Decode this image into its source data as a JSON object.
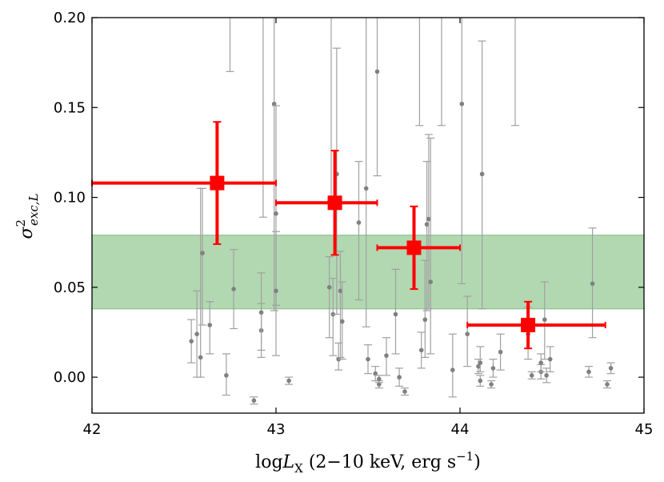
{
  "chart_data": {
    "type": "scatter",
    "xlabel": "log L_X (2–10 keV, erg s^-1)",
    "ylabel": "σ²_exc,L",
    "xlim": [
      42,
      45
    ],
    "ylim": [
      -0.02,
      0.2
    ],
    "x_ticks": [
      "42",
      "43",
      "44",
      "45"
    ],
    "y_ticks": [
      "0.00",
      "0.05",
      "0.10",
      "0.15",
      "0.20"
    ],
    "band": {
      "y_low": 0.038,
      "y_high": 0.079,
      "color": "#b2d8b2",
      "edge_color": "#7fbf7f"
    },
    "grey_points": [
      {
        "x": 42.54,
        "y": 0.02,
        "yerr_low": 0.012,
        "yerr_high": 0.012
      },
      {
        "x": 42.57,
        "y": 0.024,
        "yerr_low": 0.024,
        "yerr_high": 0.024
      },
      {
        "x": 42.59,
        "y": 0.011,
        "yerr_low": 0.011,
        "yerr_high": 0.094
      },
      {
        "x": 42.6,
        "y": 0.069,
        "yerr_low": 0.04,
        "yerr_high": 0.036
      },
      {
        "x": 42.64,
        "y": 0.029,
        "yerr_low": 0.016,
        "yerr_high": 0.013
      },
      {
        "x": 42.73,
        "y": 0.001,
        "yerr_low": 0.011,
        "yerr_high": 0.012
      },
      {
        "x": 42.75,
        "y": 0.21,
        "yerr_low": 0.04,
        "yerr_high": 0.02
      },
      {
        "x": 42.77,
        "y": 0.049,
        "yerr_low": 0.022,
        "yerr_high": 0.022
      },
      {
        "x": 42.88,
        "y": -0.013,
        "yerr_low": 0.002,
        "yerr_high": 0.002
      },
      {
        "x": 42.92,
        "y": 0.026,
        "yerr_low": 0.015,
        "yerr_high": 0.015
      },
      {
        "x": 42.92,
        "y": 0.036,
        "yerr_low": 0.021,
        "yerr_high": 0.022
      },
      {
        "x": 42.93,
        "y": 0.21,
        "yerr_low": 0.121,
        "yerr_high": 0.02
      },
      {
        "x": 42.99,
        "y": 0.152,
        "yerr_low": 0.115,
        "yerr_high": 0.05
      },
      {
        "x": 43.0,
        "y": 0.091,
        "yerr_low": 0.051,
        "yerr_high": 0.06
      },
      {
        "x": 43.0,
        "y": 0.048,
        "yerr_low": 0.036,
        "yerr_high": 0.033
      },
      {
        "x": 43.07,
        "y": -0.002,
        "yerr_low": 0.002,
        "yerr_high": 0.002
      },
      {
        "x": 43.29,
        "y": 0.05,
        "yerr_low": 0.028,
        "yerr_high": 0.017
      },
      {
        "x": 43.3,
        "y": 0.21,
        "yerr_low": 0.112,
        "yerr_high": 0.02
      },
      {
        "x": 43.31,
        "y": 0.035,
        "yerr_low": 0.023,
        "yerr_high": 0.02
      },
      {
        "x": 43.33,
        "y": 0.113,
        "yerr_low": 0.078,
        "yerr_high": 0.07
      },
      {
        "x": 43.34,
        "y": 0.01,
        "yerr_low": 0.006,
        "yerr_high": 0.009
      },
      {
        "x": 43.35,
        "y": 0.048,
        "yerr_low": 0.037,
        "yerr_high": 0.022
      },
      {
        "x": 43.36,
        "y": 0.031,
        "yerr_low": 0.021,
        "yerr_high": 0.022
      },
      {
        "x": 43.45,
        "y": 0.086,
        "yerr_low": 0.043,
        "yerr_high": 0.034
      },
      {
        "x": 43.49,
        "y": 0.105,
        "yerr_low": 0.077,
        "yerr_high": 0.105
      },
      {
        "x": 43.5,
        "y": 0.01,
        "yerr_low": 0.008,
        "yerr_high": 0.008
      },
      {
        "x": 43.54,
        "y": 0.002,
        "yerr_low": 0.004,
        "yerr_high": 0.004
      },
      {
        "x": 43.55,
        "y": 0.17,
        "yerr_low": 0.058,
        "yerr_high": 0.03
      },
      {
        "x": 43.56,
        "y": -0.004,
        "yerr_low": 0.002,
        "yerr_high": 0.002
      },
      {
        "x": 43.56,
        "y": -0.001,
        "yerr_low": 0.002,
        "yerr_high": 0.002
      },
      {
        "x": 43.6,
        "y": 0.012,
        "yerr_low": 0.011,
        "yerr_high": 0.01
      },
      {
        "x": 43.65,
        "y": 0.035,
        "yerr_low": 0.022,
        "yerr_high": 0.025
      },
      {
        "x": 43.67,
        "y": -0.0,
        "yerr_low": 0.005,
        "yerr_high": 0.005
      },
      {
        "x": 43.7,
        "y": -0.008,
        "yerr_low": 0.002,
        "yerr_high": 0.002
      },
      {
        "x": 43.78,
        "y": 0.21,
        "yerr_low": 0.07,
        "yerr_high": 0.02
      },
      {
        "x": 43.81,
        "y": 0.032,
        "yerr_low": 0.021,
        "yerr_high": 0.033
      },
      {
        "x": 43.82,
        "y": 0.085,
        "yerr_low": 0.048,
        "yerr_high": 0.035
      },
      {
        "x": 43.83,
        "y": 0.088,
        "yerr_low": 0.05,
        "yerr_high": 0.047
      },
      {
        "x": 43.84,
        "y": 0.053,
        "yerr_low": 0.04,
        "yerr_high": 0.08
      },
      {
        "x": 43.96,
        "y": 0.004,
        "yerr_low": 0.015,
        "yerr_high": 0.02
      },
      {
        "x": 43.79,
        "y": 0.015,
        "yerr_low": 0.01,
        "yerr_high": 0.01
      },
      {
        "x": 43.9,
        "y": 0.21,
        "yerr_low": 0.07,
        "yerr_high": 0.02
      },
      {
        "x": 44.01,
        "y": 0.152,
        "yerr_low": 0.1,
        "yerr_high": 0.048
      },
      {
        "x": 44.04,
        "y": 0.024,
        "yerr_low": 0.018,
        "yerr_high": 0.021
      },
      {
        "x": 44.1,
        "y": 0.006,
        "yerr_low": 0.004,
        "yerr_high": 0.004
      },
      {
        "x": 44.11,
        "y": 0.008,
        "yerr_low": 0.005,
        "yerr_high": 0.009
      },
      {
        "x": 44.11,
        "y": -0.002,
        "yerr_low": 0.003,
        "yerr_high": 0.003
      },
      {
        "x": 44.12,
        "y": 0.113,
        "yerr_low": 0.075,
        "yerr_high": 0.074
      },
      {
        "x": 44.17,
        "y": -0.004,
        "yerr_low": 0.002,
        "yerr_high": 0.002
      },
      {
        "x": 44.18,
        "y": 0.005,
        "yerr_low": 0.005,
        "yerr_high": 0.005
      },
      {
        "x": 44.22,
        "y": 0.014,
        "yerr_low": 0.01,
        "yerr_high": 0.01
      },
      {
        "x": 44.3,
        "y": 0.21,
        "yerr_low": 0.07,
        "yerr_high": 0.02
      },
      {
        "x": 44.37,
        "y": 0.024,
        "yerr_low": 0.014,
        "yerr_high": 0.015
      },
      {
        "x": 44.39,
        "y": 0.001,
        "yerr_low": 0.002,
        "yerr_high": 0.002
      },
      {
        "x": 44.44,
        "y": 0.003,
        "yerr_low": 0.004,
        "yerr_high": 0.004
      },
      {
        "x": 44.44,
        "y": 0.008,
        "yerr_low": 0.005,
        "yerr_high": 0.005
      },
      {
        "x": 44.46,
        "y": 0.032,
        "yerr_low": 0.022,
        "yerr_high": 0.021
      },
      {
        "x": 44.47,
        "y": 0.001,
        "yerr_low": 0.004,
        "yerr_high": 0.004
      },
      {
        "x": 44.49,
        "y": 0.01,
        "yerr_low": 0.007,
        "yerr_high": 0.007
      },
      {
        "x": 44.7,
        "y": 0.003,
        "yerr_low": 0.003,
        "yerr_high": 0.003
      },
      {
        "x": 44.72,
        "y": 0.052,
        "yerr_low": 0.03,
        "yerr_high": 0.031
      },
      {
        "x": 44.8,
        "y": -0.004,
        "yerr_low": 0.002,
        "yerr_high": 0.002
      },
      {
        "x": 44.82,
        "y": 0.005,
        "yerr_low": 0.003,
        "yerr_high": 0.003
      }
    ],
    "red_points": [
      {
        "x": 42.68,
        "y": 0.108,
        "xerr_low": 0.68,
        "xerr_high": 0.32,
        "yerr_low": 0.034,
        "yerr_high": 0.034
      },
      {
        "x": 43.32,
        "y": 0.097,
        "xerr_low": 0.32,
        "xerr_high": 0.23,
        "yerr_low": 0.029,
        "yerr_high": 0.029
      },
      {
        "x": 43.75,
        "y": 0.072,
        "xerr_low": 0.2,
        "xerr_high": 0.25,
        "yerr_low": 0.023,
        "yerr_high": 0.023
      },
      {
        "x": 44.37,
        "y": 0.029,
        "xerr_low": 0.33,
        "xerr_high": 0.42,
        "yerr_low": 0.013,
        "yerr_high": 0.013
      }
    ],
    "colors": {
      "grey": "#808080",
      "grey_err": "#a0a0a0",
      "red": "#ff0000"
    }
  }
}
